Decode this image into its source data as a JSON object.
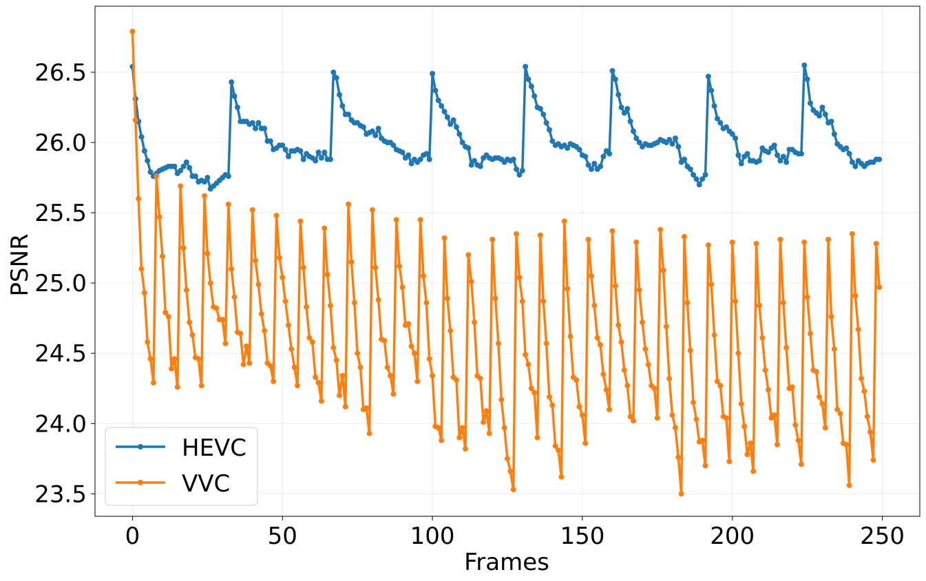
{
  "chart_data": {
    "type": "line",
    "title": "",
    "xlabel": "Frames",
    "ylabel": "PSNR",
    "xlim": [
      -12.5,
      262.5
    ],
    "ylim": [
      23.34,
      26.97
    ],
    "x_ticks": [
      0,
      50,
      100,
      150,
      200,
      250
    ],
    "x_tick_labels": [
      "0",
      "50",
      "100",
      "150",
      "200",
      "250"
    ],
    "y_ticks": [
      23.5,
      24.0,
      24.5,
      25.0,
      25.5,
      26.0,
      26.5
    ],
    "y_tick_labels": [
      "23.5",
      "24.0",
      "24.5",
      "25.0",
      "25.5",
      "26.0",
      "26.5"
    ],
    "grid": true,
    "legend_position": "bottom-left",
    "x_start": 0,
    "x_step": 1,
    "series": [
      {
        "name": "HEVC",
        "color": "#1f77b4",
        "values": [
          26.54,
          26.31,
          26.15,
          26.04,
          25.94,
          25.87,
          25.79,
          25.76,
          25.78,
          25.8,
          25.81,
          25.82,
          25.83,
          25.83,
          25.83,
          25.78,
          25.8,
          25.83,
          25.86,
          25.82,
          25.76,
          25.76,
          25.72,
          25.73,
          25.72,
          25.75,
          25.67,
          25.69,
          25.71,
          25.73,
          25.75,
          25.77,
          25.76,
          26.43,
          26.33,
          26.25,
          26.15,
          26.15,
          26.15,
          26.13,
          26.14,
          26.1,
          26.14,
          26.1,
          26.1,
          26.01,
          26.01,
          25.95,
          25.96,
          25.98,
          25.98,
          25.95,
          25.9,
          25.94,
          25.94,
          25.95,
          25.94,
          25.88,
          25.92,
          25.9,
          25.89,
          25.87,
          25.93,
          25.89,
          25.93,
          25.88,
          25.88,
          26.5,
          26.46,
          26.34,
          26.26,
          26.2,
          26.2,
          26.16,
          26.14,
          26.14,
          26.12,
          26.11,
          26.06,
          26.07,
          26.08,
          26.05,
          26.1,
          26.03,
          26.01,
          26.0,
          26.0,
          25.98,
          25.95,
          25.94,
          25.93,
          25.89,
          25.91,
          25.85,
          25.88,
          25.86,
          25.88,
          25.91,
          25.92,
          25.88,
          26.49,
          26.37,
          26.3,
          26.26,
          26.22,
          26.18,
          26.13,
          26.16,
          26.11,
          26.06,
          26.0,
          25.97,
          25.96,
          25.84,
          25.87,
          25.84,
          25.83,
          25.89,
          25.91,
          25.89,
          25.88,
          25.89,
          25.89,
          25.88,
          25.86,
          25.88,
          25.87,
          25.88,
          25.81,
          25.77,
          25.8,
          26.54,
          26.45,
          26.4,
          26.33,
          26.25,
          26.24,
          26.2,
          26.14,
          26.09,
          26.01,
          25.98,
          25.99,
          25.97,
          25.98,
          25.96,
          25.99,
          25.98,
          25.97,
          25.95,
          25.91,
          25.9,
          25.84,
          25.81,
          25.85,
          25.81,
          25.83,
          25.9,
          25.94,
          25.92,
          26.51,
          26.45,
          26.34,
          26.25,
          26.21,
          26.24,
          26.15,
          26.08,
          26.03,
          26.0,
          25.97,
          25.99,
          25.98,
          25.98,
          25.99,
          26.0,
          26.02,
          26.01,
          26.0,
          26.02,
          25.99,
          26.03,
          25.97,
          25.86,
          25.88,
          25.83,
          25.81,
          25.77,
          25.74,
          25.7,
          25.74,
          25.77,
          26.47,
          26.37,
          26.26,
          26.17,
          26.14,
          26.1,
          26.11,
          26.08,
          26.06,
          26.03,
          25.91,
          25.85,
          25.9,
          25.92,
          25.87,
          25.87,
          25.86,
          25.87,
          25.96,
          25.94,
          25.93,
          25.96,
          25.98,
          25.91,
          25.87,
          25.9,
          25.86,
          25.95,
          25.95,
          25.93,
          25.92,
          25.92,
          26.55,
          26.45,
          26.28,
          26.23,
          26.21,
          26.19,
          26.25,
          26.2,
          26.14,
          26.15,
          26.06,
          25.99,
          25.97,
          25.95,
          25.96,
          25.92,
          25.86,
          25.83,
          25.87,
          25.85,
          25.83,
          25.85,
          25.86,
          25.86,
          25.88,
          25.88
        ]
      },
      {
        "name": "VVC",
        "color": "#ff7f0e",
        "values": [
          26.79,
          26.16,
          25.6,
          25.1,
          24.93,
          24.58,
          24.46,
          24.29,
          25.76,
          25.47,
          25.19,
          24.79,
          24.76,
          24.39,
          24.46,
          24.26,
          25.69,
          25.25,
          24.95,
          24.72,
          24.63,
          24.47,
          24.46,
          24.27,
          25.62,
          25.21,
          25.0,
          24.83,
          24.82,
          24.74,
          24.74,
          24.57,
          25.56,
          25.1,
          24.9,
          24.65,
          24.64,
          24.42,
          24.55,
          24.43,
          25.52,
          25.16,
          24.99,
          24.78,
          24.66,
          24.43,
          24.41,
          24.3,
          25.48,
          25.18,
          25.04,
          24.87,
          24.7,
          24.53,
          24.4,
          24.27,
          25.44,
          25.11,
          24.83,
          24.61,
          24.58,
          24.33,
          24.29,
          24.16,
          25.39,
          25.06,
          24.84,
          24.54,
          24.45,
          24.2,
          24.34,
          24.12,
          25.56,
          25.15,
          24.86,
          24.5,
          24.4,
          24.1,
          24.11,
          23.93,
          25.52,
          25.11,
          24.88,
          24.6,
          24.59,
          24.4,
          24.34,
          24.21,
          25.45,
          25.12,
          24.97,
          24.7,
          24.71,
          24.55,
          24.5,
          24.3,
          25.45,
          25.05,
          24.86,
          24.46,
          24.34,
          23.98,
          23.97,
          23.88,
          25.32,
          24.89,
          24.66,
          24.33,
          24.31,
          23.9,
          23.97,
          23.82,
          25.2,
          25.01,
          24.72,
          24.34,
          24.32,
          24.01,
          24.09,
          23.93,
          25.31,
          24.89,
          24.57,
          24.17,
          23.97,
          23.75,
          23.66,
          23.53,
          25.35,
          25.04,
          24.87,
          24.49,
          24.42,
          24.25,
          24.22,
          23.9,
          25.34,
          24.87,
          24.57,
          24.19,
          24.13,
          23.84,
          23.81,
          23.62,
          25.44,
          24.96,
          24.62,
          24.33,
          24.31,
          24.12,
          24.06,
          23.86,
          25.31,
          25.05,
          24.84,
          24.61,
          24.56,
          24.35,
          24.24,
          24.1,
          25.37,
          24.98,
          24.7,
          24.58,
          24.38,
          24.27,
          24.05,
          24.02,
          25.29,
          24.95,
          24.72,
          24.53,
          24.42,
          24.27,
          24.25,
          24.04,
          25.38,
          25.09,
          24.69,
          24.32,
          24.06,
          23.97,
          23.76,
          23.5,
          25.33,
          24.86,
          24.52,
          24.15,
          24.03,
          23.87,
          23.88,
          23.7,
          25.27,
          24.99,
          24.63,
          24.3,
          24.27,
          24.05,
          24.04,
          23.73,
          25.29,
          24.87,
          24.5,
          24.14,
          23.98,
          23.78,
          23.86,
          23.66,
          25.28,
          24.84,
          24.61,
          24.38,
          24.24,
          24.04,
          24.06,
          23.85,
          25.31,
          24.86,
          24.54,
          24.25,
          24.26,
          23.99,
          23.88,
          23.71,
          25.29,
          24.9,
          24.64,
          24.38,
          24.37,
          24.19,
          24.14,
          23.97,
          25.31,
          24.76,
          24.53,
          24.1,
          24.07,
          23.86,
          23.85,
          23.56,
          25.35,
          24.91,
          24.67,
          24.32,
          24.23,
          24.05,
          23.94,
          23.74,
          25.28,
          24.97
        ]
      }
    ]
  }
}
